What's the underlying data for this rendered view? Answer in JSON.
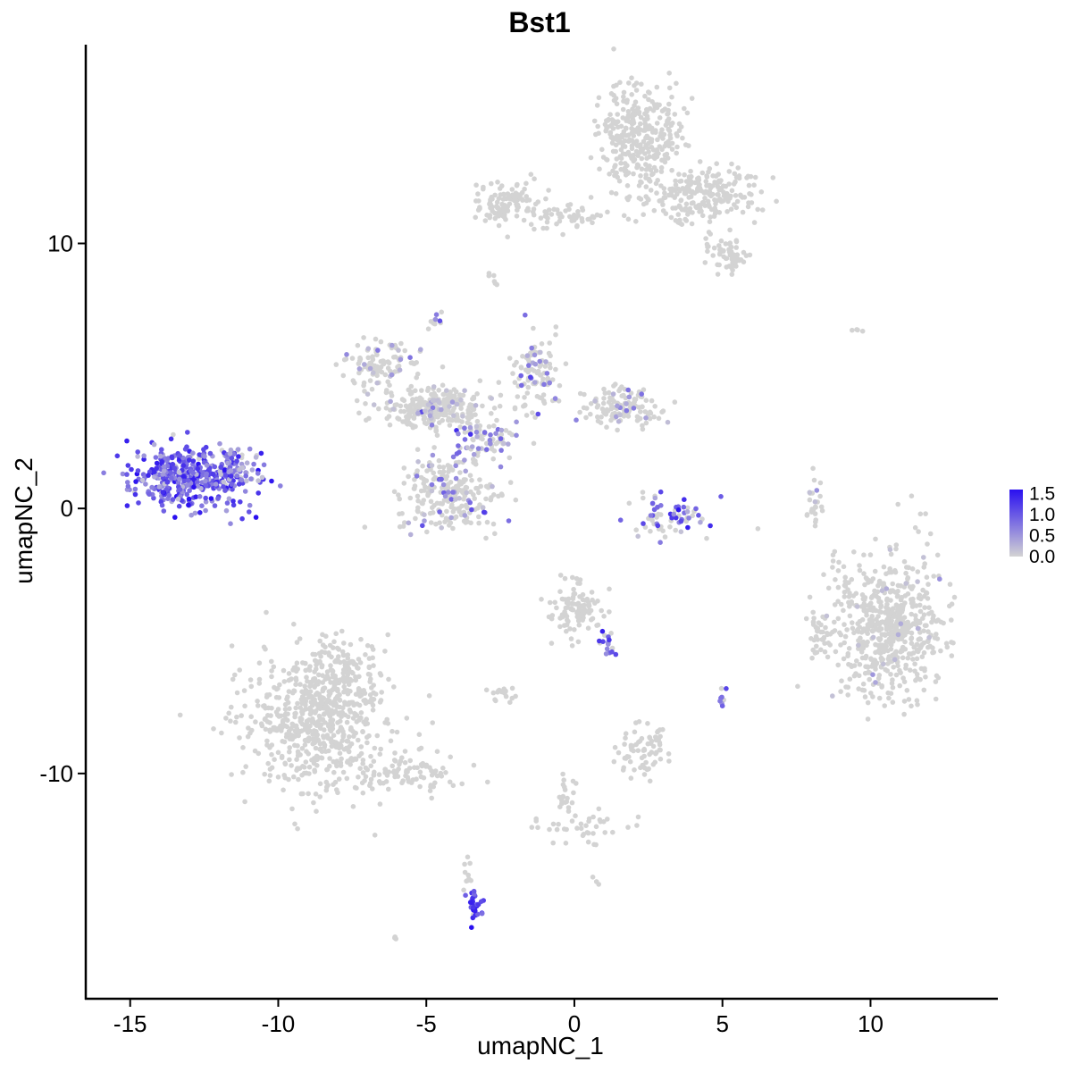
{
  "chart_data": {
    "type": "scatter",
    "title": "Bst1",
    "xlabel": "umapNC_1",
    "ylabel": "umapNC_2",
    "xlim": [
      -16.5,
      14.3
    ],
    "ylim": [
      -18.5,
      17.5
    ],
    "x_ticks": [
      -15,
      -10,
      -5,
      0,
      5,
      10
    ],
    "x_tick_labels": [
      "-15",
      "-10",
      "-5",
      "0",
      "5",
      "10"
    ],
    "y_ticks": [
      -10,
      0,
      10
    ],
    "y_tick_labels": [
      "-10",
      "0",
      "10"
    ],
    "grid": false,
    "colors": {
      "low": "#d3d3d3",
      "high": "#2a10f0",
      "axis": "#000000"
    },
    "color_scale": {
      "min": 0.0,
      "max": 1.6,
      "tick_values": [
        0.0,
        0.5,
        1.0,
        1.5
      ],
      "tick_labels": [
        "0.0",
        "0.5",
        "1.0",
        "1.5"
      ],
      "legend_placement": "right"
    },
    "clusters": [
      {
        "x": -13.0,
        "y": 1.2,
        "sx": 1.0,
        "sy": 0.6,
        "n": 420,
        "expr": 0.95,
        "expr_frac": 0.97
      },
      {
        "x": -11.5,
        "y": 1.5,
        "sx": 0.5,
        "sy": 0.4,
        "n": 60,
        "expr": 0.6,
        "expr_frac": 0.8
      },
      {
        "x": -8.8,
        "y": -8.0,
        "sx": 1.2,
        "sy": 1.3,
        "n": 620,
        "expr": 0.0,
        "expr_frac": 0.0
      },
      {
        "x": -7.8,
        "y": -6.2,
        "sx": 0.6,
        "sy": 0.7,
        "n": 120,
        "expr": 0.0,
        "expr_frac": 0.0
      },
      {
        "x": -5.5,
        "y": -10.0,
        "sx": 1.0,
        "sy": 0.35,
        "n": 90,
        "expr": 0.0,
        "expr_frac": 0.0
      },
      {
        "x": -3.4,
        "y": -15.0,
        "sx": 0.18,
        "sy": 0.35,
        "n": 30,
        "expr": 1.3,
        "expr_frac": 0.85
      },
      {
        "x": -3.6,
        "y": -13.8,
        "sx": 0.08,
        "sy": 0.4,
        "n": 10,
        "expr": 0.0,
        "expr_frac": 0.0
      },
      {
        "x": -4.8,
        "y": 3.8,
        "sx": 0.8,
        "sy": 0.35,
        "n": 260,
        "expr": 0.1,
        "expr_frac": 0.12
      },
      {
        "x": -6.6,
        "y": 5.3,
        "sx": 0.6,
        "sy": 0.5,
        "n": 110,
        "expr": 0.3,
        "expr_frac": 0.15
      },
      {
        "x": -4.3,
        "y": 0.5,
        "sx": 0.9,
        "sy": 0.7,
        "n": 240,
        "expr": 0.5,
        "expr_frac": 0.18
      },
      {
        "x": -3.0,
        "y": 2.5,
        "sx": 0.6,
        "sy": 0.5,
        "n": 90,
        "expr": 0.7,
        "expr_frac": 0.35
      },
      {
        "x": -1.3,
        "y": 5.0,
        "sx": 0.5,
        "sy": 0.8,
        "n": 110,
        "expr": 0.7,
        "expr_frac": 0.25
      },
      {
        "x": 1.6,
        "y": 3.8,
        "sx": 0.6,
        "sy": 0.35,
        "n": 130,
        "expr": 0.4,
        "expr_frac": 0.1
      },
      {
        "x": -4.7,
        "y": 7.2,
        "sx": 0.12,
        "sy": 0.15,
        "n": 10,
        "expr": 0.7,
        "expr_frac": 0.5
      },
      {
        "x": 3.2,
        "y": -0.4,
        "sx": 0.7,
        "sy": 0.4,
        "n": 70,
        "expr": 0.9,
        "expr_frac": 0.45
      },
      {
        "x": 0.0,
        "y": -3.8,
        "sx": 0.45,
        "sy": 0.5,
        "n": 100,
        "expr": 0.0,
        "expr_frac": 0.0
      },
      {
        "x": 1.1,
        "y": -5.2,
        "sx": 0.15,
        "sy": 0.3,
        "n": 15,
        "expr": 1.0,
        "expr_frac": 0.6
      },
      {
        "x": -2.5,
        "y": -7.0,
        "sx": 0.3,
        "sy": 0.15,
        "n": 20,
        "expr": 0.0,
        "expr_frac": 0.0
      },
      {
        "x": 2.3,
        "y": -9.2,
        "sx": 0.45,
        "sy": 0.45,
        "n": 70,
        "expr": 0.0,
        "expr_frac": 0.0
      },
      {
        "x": 0.2,
        "y": -12.0,
        "sx": 0.9,
        "sy": 0.3,
        "n": 40,
        "expr": 0.0,
        "expr_frac": 0.0
      },
      {
        "x": -0.3,
        "y": -10.8,
        "sx": 0.2,
        "sy": 0.5,
        "n": 20,
        "expr": 0.0,
        "expr_frac": 0.0
      },
      {
        "x": 2.2,
        "y": 14.0,
        "sx": 0.7,
        "sy": 1.1,
        "n": 320,
        "expr": 0.0,
        "expr_frac": 0.0
      },
      {
        "x": 4.2,
        "y": 11.8,
        "sx": 1.0,
        "sy": 0.5,
        "n": 220,
        "expr": 0.0,
        "expr_frac": 0.0
      },
      {
        "x": 5.2,
        "y": 9.6,
        "sx": 0.4,
        "sy": 0.3,
        "n": 60,
        "expr": 0.0,
        "expr_frac": 0.0
      },
      {
        "x": -2.3,
        "y": 11.6,
        "sx": 0.6,
        "sy": 0.4,
        "n": 110,
        "expr": 0.0,
        "expr_frac": 0.0
      },
      {
        "x": -0.3,
        "y": 11.0,
        "sx": 0.8,
        "sy": 0.25,
        "n": 50,
        "expr": 0.0,
        "expr_frac": 0.0
      },
      {
        "x": 10.6,
        "y": -4.5,
        "sx": 0.9,
        "sy": 1.3,
        "n": 620,
        "expr": 0.0,
        "expr_frac": 0.02
      },
      {
        "x": 8.3,
        "y": -4.8,
        "sx": 0.2,
        "sy": 0.4,
        "n": 30,
        "expr": 0.0,
        "expr_frac": 0.0
      },
      {
        "x": 8.1,
        "y": 0.2,
        "sx": 0.12,
        "sy": 0.5,
        "n": 25,
        "expr": 0.4,
        "expr_frac": 0.1
      },
      {
        "x": 5.0,
        "y": -7.2,
        "sx": 0.1,
        "sy": 0.15,
        "n": 10,
        "expr": 1.0,
        "expr_frac": 0.4
      },
      {
        "x": -2.8,
        "y": 8.6,
        "sx": 0.1,
        "sy": 0.3,
        "n": 6,
        "expr": 0.0,
        "expr_frac": 0.0
      },
      {
        "x": -6.0,
        "y": -16.2,
        "sx": 0.1,
        "sy": 0.08,
        "n": 4,
        "expr": 0.0,
        "expr_frac": 0.0
      },
      {
        "x": 9.6,
        "y": 6.8,
        "sx": 0.15,
        "sy": 0.1,
        "n": 4,
        "expr": 0.0,
        "expr_frac": 0.0
      },
      {
        "x": 0.7,
        "y": -14.0,
        "sx": 0.08,
        "sy": 0.08,
        "n": 3,
        "expr": 0.0,
        "expr_frac": 0.0
      }
    ]
  }
}
